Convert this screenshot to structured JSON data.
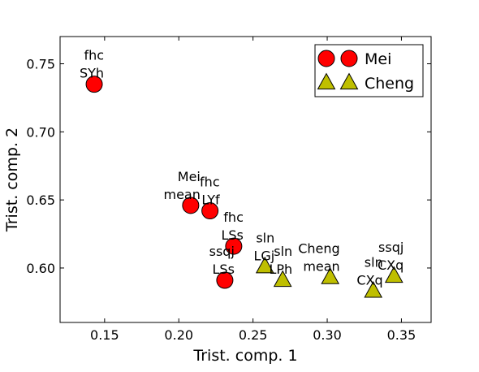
{
  "chart_data": {
    "type": "scatter",
    "xlabel": "Trist. comp. 1",
    "ylabel": "Trist. comp. 2",
    "xlim": [
      0.12,
      0.37
    ],
    "ylim": [
      0.56,
      0.77
    ],
    "xticks": [
      0.15,
      0.2,
      0.25,
      0.3,
      0.35
    ],
    "xtick_labels": [
      "0.15",
      "0.20",
      "0.25",
      "0.30",
      "0.35"
    ],
    "yticks": [
      0.6,
      0.65,
      0.7,
      0.75
    ],
    "ytick_labels": [
      "0.60",
      "0.65",
      "0.70",
      "0.75"
    ],
    "grid": false,
    "legend_position": "top-right",
    "series": [
      {
        "name": "Mei",
        "marker": "circle",
        "color": "#ff0000",
        "points": [
          {
            "x": 0.143,
            "y": 0.735,
            "label": [
              "fhc",
              "SYh"
            ]
          },
          {
            "x": 0.208,
            "y": 0.646,
            "label": [
              "Mei",
              "mean"
            ]
          },
          {
            "x": 0.221,
            "y": 0.642,
            "label": [
              "fhc",
              "LYf"
            ]
          },
          {
            "x": 0.237,
            "y": 0.616,
            "label": [
              "fhc",
              "LSs"
            ]
          },
          {
            "x": 0.231,
            "y": 0.591,
            "label": [
              "ssqj",
              "LSs"
            ]
          }
        ]
      },
      {
        "name": "Cheng",
        "marker": "triangle",
        "color": "#bfbf00",
        "points": [
          {
            "x": 0.258,
            "y": 0.601,
            "label": [
              "sln",
              "LGj"
            ]
          },
          {
            "x": 0.27,
            "y": 0.591,
            "label": [
              "sln",
              "LPh"
            ]
          },
          {
            "x": 0.302,
            "y": 0.593,
            "label": [
              "Cheng",
              "mean"
            ]
          },
          {
            "x": 0.331,
            "y": 0.583,
            "label": [
              "sln",
              "CXq"
            ]
          },
          {
            "x": 0.345,
            "y": 0.594,
            "label": [
              "ssqj",
              "CXq"
            ]
          }
        ]
      }
    ]
  }
}
